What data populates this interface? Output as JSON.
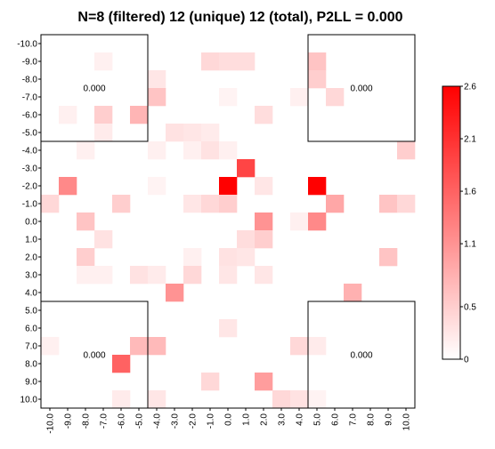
{
  "chart_data": {
    "type": "heatmap",
    "title": "N=8 (filtered) 12 (unique) 12 (total), P2LL = 0.000",
    "x_ticks": [
      "-10.0",
      "-9.0",
      "-8.0",
      "-7.0",
      "-6.0",
      "-5.0",
      "-4.0",
      "-3.0",
      "-2.0",
      "-1.0",
      "0.0",
      "1.0",
      "2.0",
      "3.0",
      "4.0",
      "5.0",
      "6.0",
      "7.0",
      "8.0",
      "9.0",
      "10.0"
    ],
    "y_ticks": [
      "-10.0",
      "-9.0",
      "-8.0",
      "-7.0",
      "-6.0",
      "-5.0",
      "-4.0",
      "-3.0",
      "-2.0",
      "-1.0",
      "0.0",
      "1.0",
      "2.0",
      "3.0",
      "4.0",
      "5.0",
      "6.0",
      "7.0",
      "8.0",
      "9.0",
      "10.0"
    ],
    "grid": false,
    "colorbar": {
      "min": 0,
      "max": 2.6,
      "ticks": [
        "2.6",
        "2.1",
        "1.6",
        "1.1",
        "0.5",
        "0"
      ],
      "tick_values": [
        2.6,
        2.1,
        1.6,
        1.1,
        0.5,
        0
      ],
      "low_color": "#ffffff",
      "high_color": "#ff0000",
      "placement": "right"
    },
    "quadrant_labels": [
      "0.000",
      "0.000",
      "0.000",
      "0.000"
    ],
    "values": [
      [
        0,
        0,
        0,
        0,
        0,
        0,
        0,
        0,
        0,
        0,
        0,
        0,
        0,
        0,
        0,
        0,
        0,
        0,
        0,
        0,
        0
      ],
      [
        0,
        0,
        0,
        0.15,
        0,
        0,
        0,
        0,
        0,
        0.4,
        0.35,
        0.35,
        0,
        0,
        0,
        0.6,
        0,
        0,
        0,
        0,
        0
      ],
      [
        0,
        0,
        0,
        0,
        0,
        0,
        0.25,
        0,
        0,
        0,
        0,
        0,
        0,
        0,
        0,
        0.5,
        0,
        0,
        0,
        0,
        0
      ],
      [
        0,
        0,
        0,
        0,
        0,
        0,
        0.6,
        0,
        0,
        0,
        0.12,
        0,
        0,
        0,
        0.15,
        0,
        0.4,
        0,
        0,
        0,
        0
      ],
      [
        0,
        0.15,
        0,
        0.5,
        0,
        0.75,
        0,
        0,
        0,
        0,
        0,
        0,
        0.35,
        0,
        0,
        0,
        0,
        0,
        0,
        0,
        0
      ],
      [
        0,
        0,
        0,
        0.2,
        0,
        0,
        0,
        0.3,
        0.25,
        0.2,
        0,
        0,
        0,
        0,
        0,
        0,
        0,
        0,
        0,
        0,
        0
      ],
      [
        0,
        0,
        0.15,
        0,
        0,
        0,
        0.15,
        0,
        0.15,
        0.3,
        0.15,
        0,
        0,
        0,
        0,
        0,
        0,
        0,
        0,
        0,
        0.5
      ],
      [
        0,
        0,
        0,
        0,
        0,
        0,
        0,
        0,
        0,
        0,
        0,
        1.9,
        0,
        0,
        0,
        0,
        0,
        0,
        0,
        0,
        0
      ],
      [
        0,
        1.2,
        0,
        0,
        0,
        0,
        0.12,
        0,
        0,
        0,
        2.6,
        0,
        0.25,
        0,
        0,
        2.6,
        0,
        0,
        0,
        0,
        0
      ],
      [
        0.4,
        0,
        0,
        0,
        0.5,
        0,
        0,
        0,
        0.25,
        0.4,
        0.5,
        0,
        0,
        0,
        0,
        0,
        0.9,
        0,
        0,
        0.6,
        0.4
      ],
      [
        0,
        0,
        0.6,
        0,
        0,
        0,
        0,
        0,
        0,
        0,
        0,
        0,
        1.1,
        0,
        0.15,
        1.2,
        0,
        0,
        0,
        0,
        0
      ],
      [
        0,
        0,
        0,
        0.3,
        0,
        0,
        0,
        0,
        0,
        0,
        0,
        0.35,
        0.5,
        0,
        0,
        0,
        0,
        0,
        0,
        0,
        0
      ],
      [
        0,
        0,
        0.5,
        0,
        0,
        0,
        0,
        0,
        0.15,
        0,
        0.3,
        0.25,
        0,
        0,
        0,
        0,
        0,
        0,
        0,
        0.6,
        0
      ],
      [
        0,
        0,
        0.15,
        0.15,
        0,
        0.3,
        0.2,
        0,
        0.4,
        0,
        0.25,
        0,
        0.25,
        0,
        0,
        0,
        0,
        0,
        0,
        0,
        0
      ],
      [
        0,
        0,
        0,
        0,
        0,
        0,
        0,
        1.1,
        0,
        0,
        0,
        0,
        0,
        0,
        0,
        0,
        0,
        0.8,
        0,
        0,
        0
      ],
      [
        0,
        0,
        0,
        0,
        0,
        0,
        0,
        0,
        0,
        0,
        0,
        0,
        0,
        0,
        0,
        0,
        0,
        0,
        0,
        0,
        0
      ],
      [
        0,
        0,
        0,
        0,
        0,
        0,
        0,
        0,
        0,
        0,
        0.25,
        0,
        0,
        0,
        0,
        0,
        0,
        0,
        0,
        0,
        0
      ],
      [
        0.15,
        0,
        0,
        0,
        0,
        0.7,
        0.7,
        0,
        0,
        0,
        0,
        0,
        0,
        0,
        0.4,
        0.2,
        0,
        0,
        0,
        0,
        0
      ],
      [
        0,
        0,
        0,
        0,
        1.6,
        0,
        0,
        0,
        0,
        0,
        0,
        0,
        0,
        0,
        0,
        0,
        0,
        0,
        0,
        0,
        0
      ],
      [
        0,
        0,
        0,
        0,
        0,
        0,
        0,
        0,
        0,
        0.4,
        0,
        0,
        1.0,
        0,
        0,
        0,
        0,
        0,
        0,
        0,
        0
      ],
      [
        0,
        0,
        0,
        0,
        0.2,
        0,
        0.25,
        0,
        0,
        0,
        0,
        0,
        0,
        0.4,
        0.3,
        0.12,
        0,
        0,
        0,
        0,
        0
      ]
    ]
  }
}
